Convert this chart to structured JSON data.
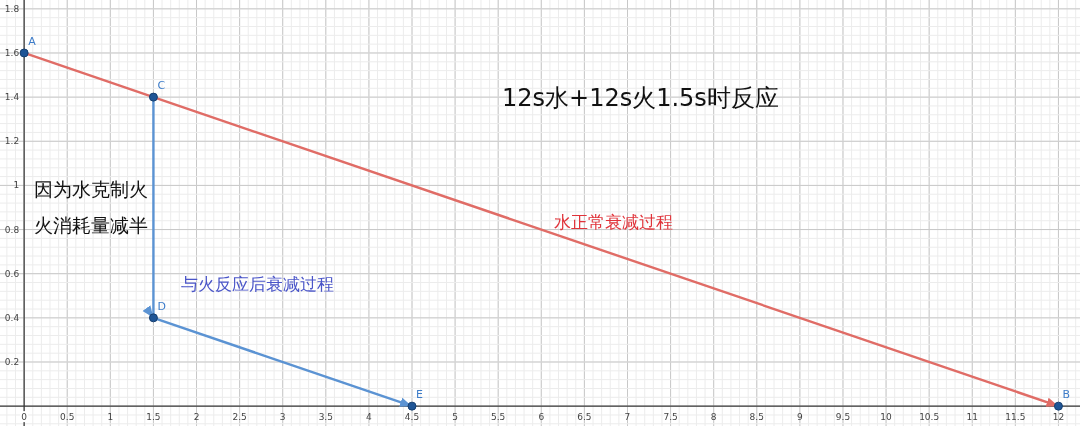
{
  "chart_data": {
    "type": "line",
    "title": "12s水+12s火1.5s时反应",
    "series": [
      {
        "name": "水正常衰减过程",
        "color": "#e06c66",
        "x": [
          0,
          12
        ],
        "values": [
          1.6,
          0
        ]
      },
      {
        "name": "与火反应后衰减过程",
        "color": "#5b93d3",
        "x": [
          1.5,
          1.5,
          4.5
        ],
        "values": [
          1.4,
          0.4,
          0
        ]
      }
    ],
    "annotations": [
      {
        "text": "A",
        "x": 0,
        "y": 1.6
      },
      {
        "text": "B",
        "x": 12,
        "y": 0
      },
      {
        "text": "C",
        "x": 1.5,
        "y": 1.4
      },
      {
        "text": "D",
        "x": 1.5,
        "y": 0.4
      },
      {
        "text": "E",
        "x": 4.5,
        "y": 0
      },
      "因为水克制火",
      "火消耗量减半"
    ],
    "xlim": [
      -0.28,
      12.25
    ],
    "ylim": [
      -0.09,
      1.84
    ],
    "xticks": [
      0,
      0.5,
      1,
      1.5,
      2,
      2.5,
      3,
      3.5,
      4,
      4.5,
      5,
      5.5,
      6,
      6.5,
      7,
      7.5,
      8,
      8.5,
      9,
      9.5,
      10,
      10.5,
      11,
      11.5,
      12
    ],
    "yticks": [
      0.2,
      0.4,
      0.6,
      0.8,
      1,
      1.2,
      1.4,
      1.6,
      1.8
    ],
    "grid": true,
    "marker": "circle",
    "line_style": "solid"
  }
}
